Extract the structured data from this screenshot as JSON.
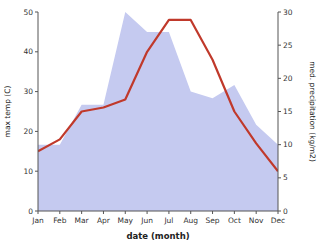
{
  "chart_data": {
    "type": "line",
    "categories": [
      "Jan",
      "Feb",
      "Mar",
      "Apr",
      "May",
      "Jun",
      "Jul",
      "Aug",
      "Sep",
      "Oct",
      "Nov",
      "Dec"
    ],
    "series": [
      {
        "type": "area",
        "axis": "y2",
        "color": "#c5caf0",
        "values": [
          10,
          10,
          16,
          16,
          30,
          27,
          27,
          18,
          17,
          19,
          13,
          10
        ]
      },
      {
        "type": "line",
        "color": "#c0392b",
        "values": [
          15,
          18,
          25,
          26,
          28,
          40,
          48,
          48,
          38,
          25,
          17,
          10
        ]
      }
    ],
    "xlabel": "date (month)",
    "ylabel": "max temp (C)",
    "y2label": "med. precipitation (kg/m2)",
    "ylim": [
      0,
      50
    ],
    "yticks": [
      0,
      10,
      20,
      30,
      40,
      50
    ],
    "y2lim": [
      0,
      30
    ],
    "y2ticks": [
      0,
      5,
      10,
      15,
      20,
      25,
      30
    ],
    "grid": false
  }
}
